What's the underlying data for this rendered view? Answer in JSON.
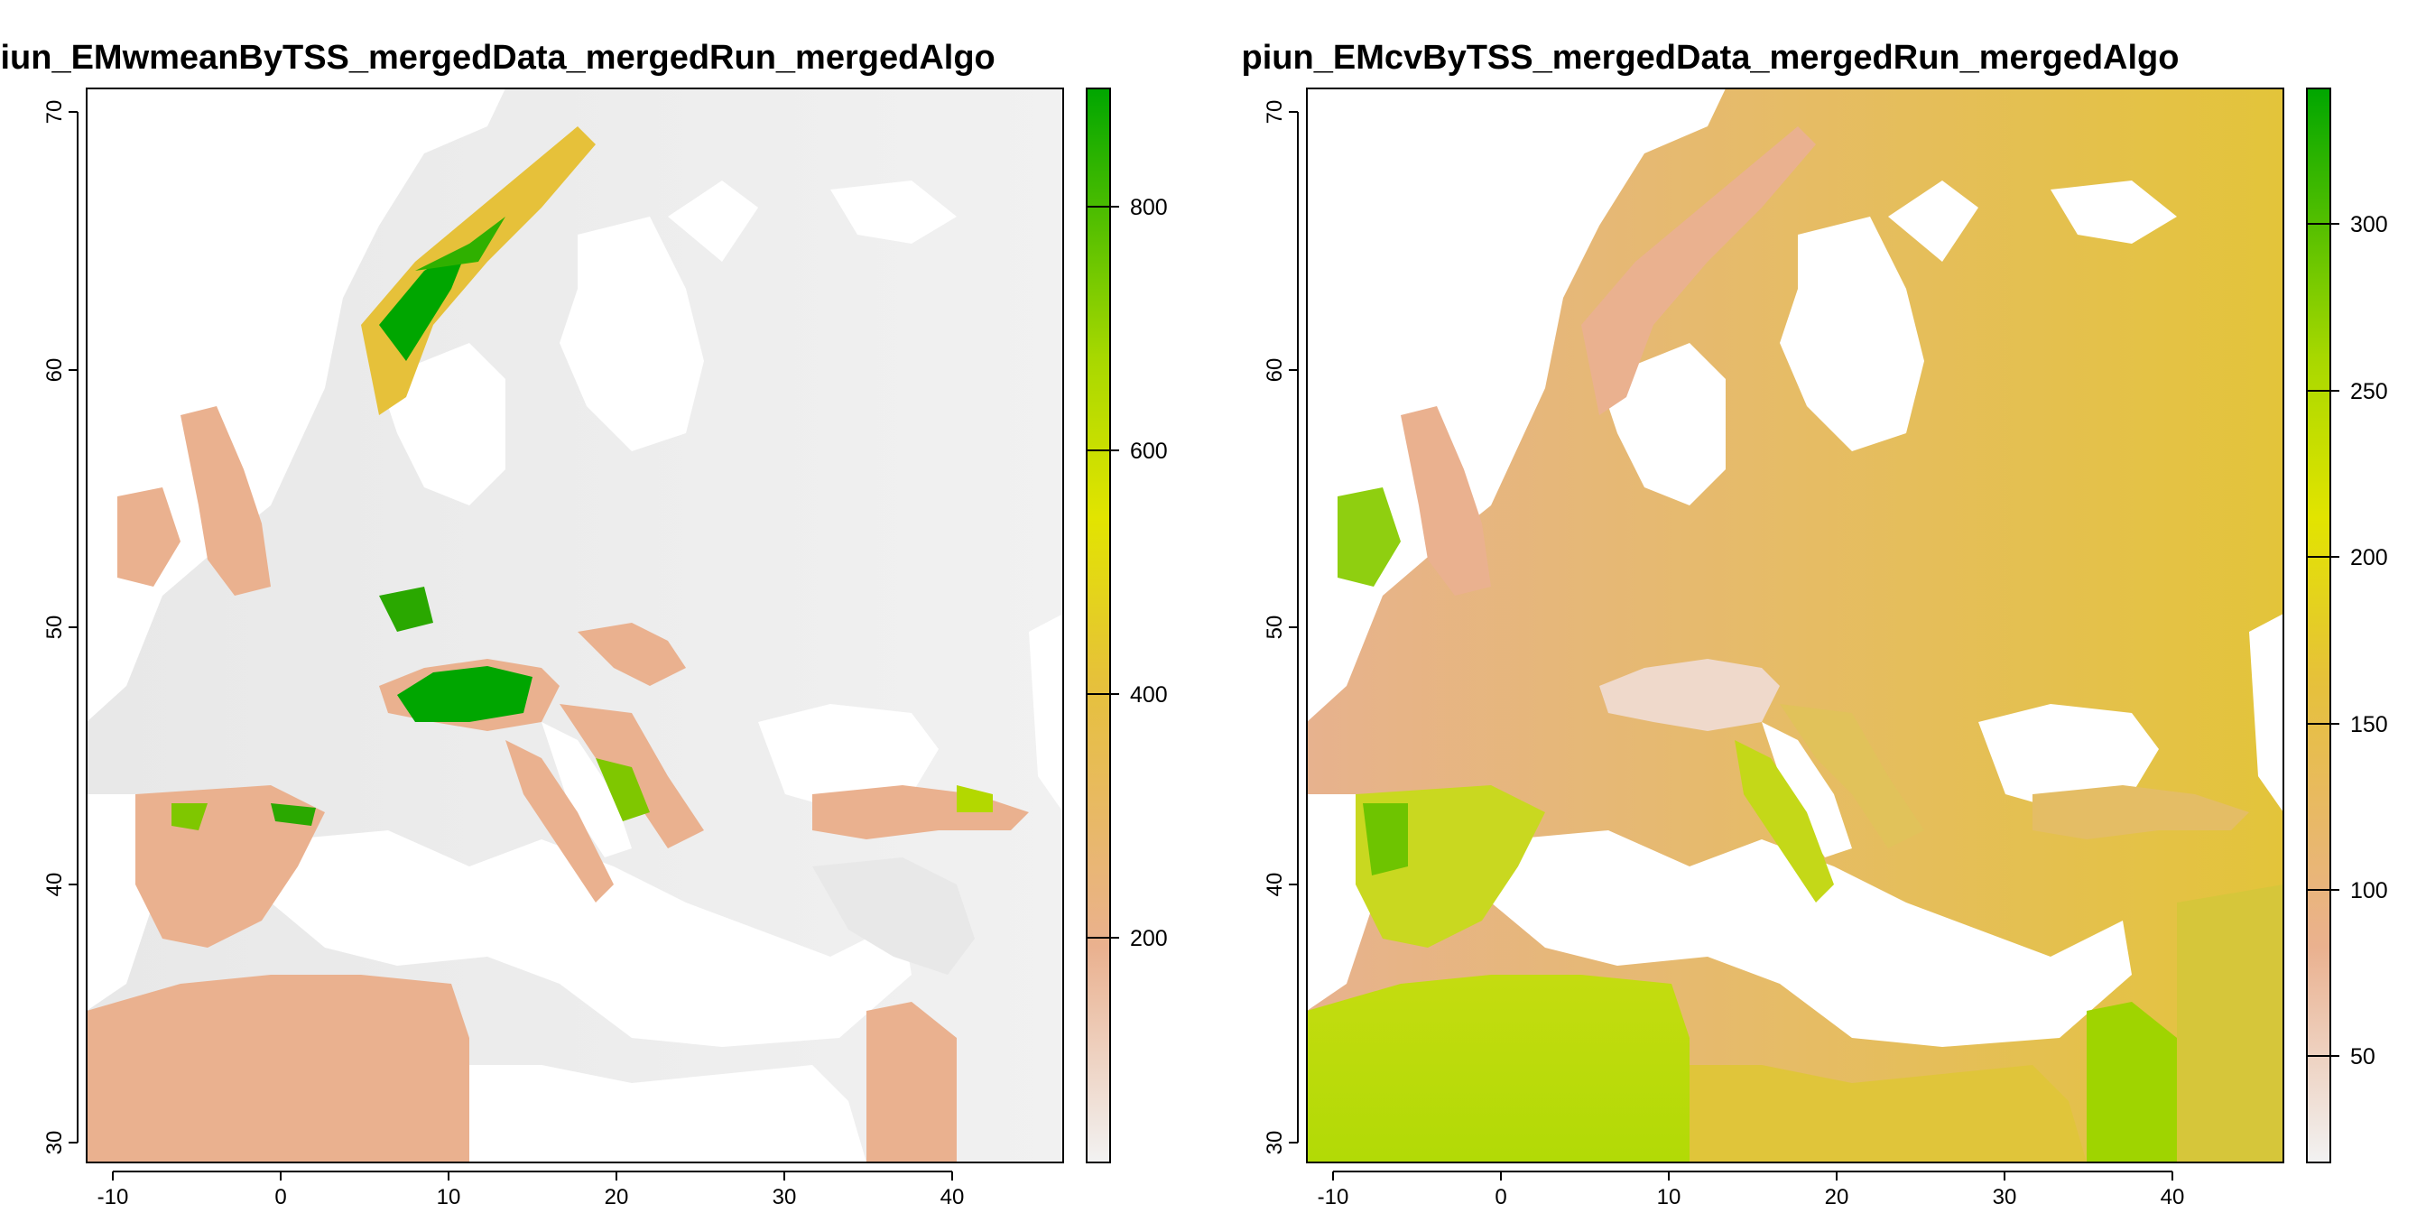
{
  "maps": [
    {
      "title": "piun_EMwmeanByTSS_mergedData_mergedRun_mergedAlgo",
      "x_ticks": [
        "-10",
        "0",
        "10",
        "20",
        "30",
        "40"
      ],
      "y_ticks": [
        "30",
        "40",
        "50",
        "60",
        "70"
      ],
      "legend_ticks": [
        "200",
        "400",
        "600",
        "800"
      ],
      "colors": {
        "low": "#f2f2f2",
        "mid_low": "#eab18f",
        "mid": "#e6c13a",
        "mid_high": "#d7e600",
        "high": "#00a600"
      }
    },
    {
      "title": "piun_EMcvByTSS_mergedData_mergedRun_mergedAlgo",
      "x_ticks": [
        "-10",
        "0",
        "10",
        "20",
        "30",
        "40"
      ],
      "y_ticks": [
        "30",
        "40",
        "50",
        "60",
        "70"
      ],
      "legend_ticks": [
        "50",
        "100",
        "150",
        "200",
        "250",
        "300"
      ],
      "colors": {
        "low": "#f2f2f2",
        "mid_low": "#eab18f",
        "mid": "#e6c13a",
        "mid_high": "#d7e600",
        "high": "#00a600"
      }
    }
  ]
}
